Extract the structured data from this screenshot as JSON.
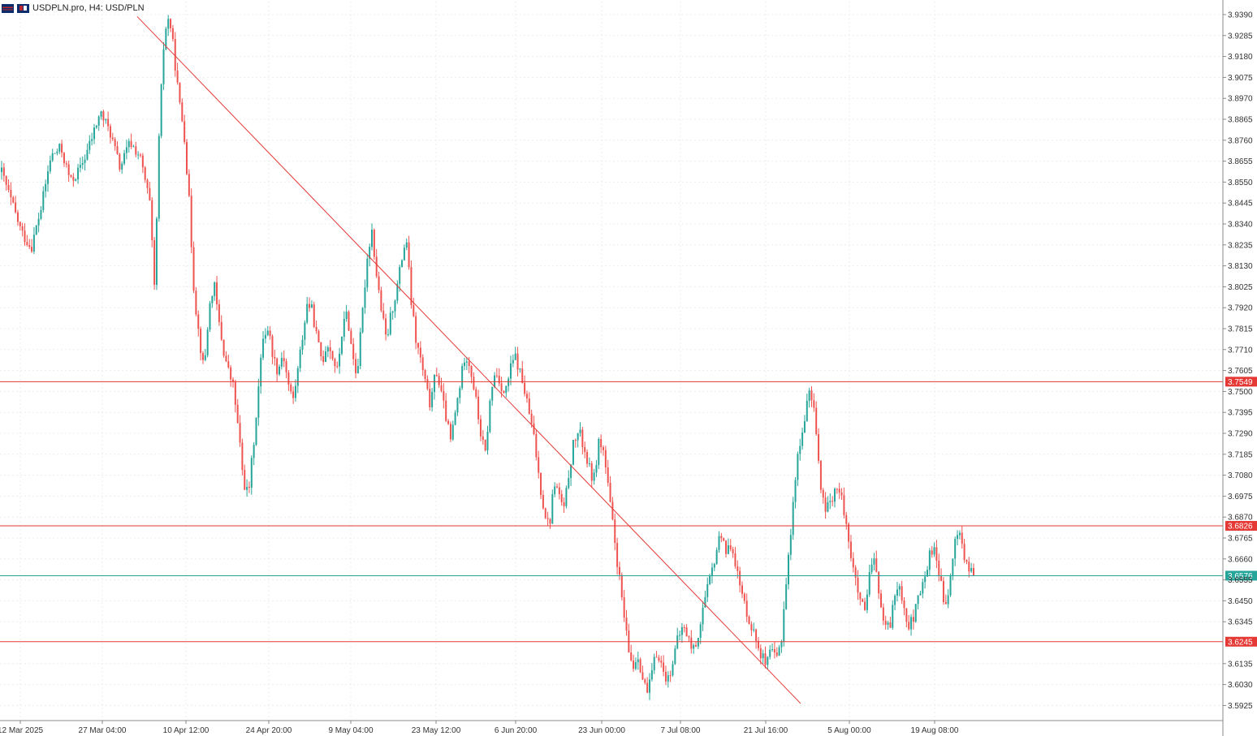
{
  "header": {
    "symbol_label": "USDPLN.pro, H4:  USD/PLN",
    "icons": [
      "broker-flag-icon",
      "broker-logo-icon"
    ]
  },
  "colors": {
    "bull": "#26a69a",
    "bear": "#ef5350",
    "resistance": "#e53935",
    "current_price": "#26a69a",
    "grid": "#ececec",
    "axis_text": "#333333"
  },
  "chart_data": {
    "type": "candlestick",
    "symbol": "USDPLN.pro",
    "timeframe": "H4",
    "ylim": [
      3.5855,
      3.9425
    ],
    "y_ticks": [
      "3.9390",
      "3.9285",
      "3.9180",
      "3.9075",
      "3.8970",
      "3.8865",
      "3.8760",
      "3.8655",
      "3.8550",
      "3.8445",
      "3.8340",
      "3.8235",
      "3.8130",
      "3.8025",
      "3.7920",
      "3.7815",
      "3.7710",
      "3.7605",
      "3.7500",
      "3.7395",
      "3.7290",
      "3.7185",
      "3.7080",
      "3.6975",
      "3.6870",
      "3.6765",
      "3.6660",
      "3.6555",
      "3.6450",
      "3.6345",
      "3.6135",
      "3.6030",
      "3.5925"
    ],
    "x_ticks": [
      "12 Mar 2025",
      "27 Mar 04:00",
      "10 Apr 12:00",
      "24 Apr 20:00",
      "9 May 04:00",
      "23 May 12:00",
      "6 Jun 20:00",
      "23 Jun 00:00",
      "7 Jul 08:00",
      "21 Jul 16:00",
      "5 Aug 00:00",
      "19 Aug 08:00"
    ],
    "horizontal_levels": [
      {
        "price": "3.7549",
        "value": 3.7549,
        "kind": "resistance"
      },
      {
        "price": "3.6826",
        "value": 3.6826,
        "kind": "resistance"
      },
      {
        "price": "3.6576",
        "value": 3.6576,
        "kind": "current"
      },
      {
        "price": "3.6245",
        "value": 3.6245,
        "kind": "resistance"
      }
    ],
    "trendline": {
      "from": {
        "date": "2025-03-30",
        "price": 3.938
      },
      "to": {
        "date": "2025-07-30",
        "price": 3.5935
      }
    },
    "path_points": [
      [
        0,
        3.86
      ],
      [
        4,
        3.845
      ],
      [
        8,
        3.83
      ],
      [
        12,
        3.822
      ],
      [
        16,
        3.842
      ],
      [
        20,
        3.868
      ],
      [
        24,
        3.872
      ],
      [
        28,
        3.855
      ],
      [
        32,
        3.862
      ],
      [
        36,
        3.875
      ],
      [
        40,
        3.89
      ],
      [
        44,
        3.88
      ],
      [
        48,
        3.862
      ],
      [
        52,
        3.875
      ],
      [
        56,
        3.868
      ],
      [
        60,
        3.845
      ],
      [
        62,
        3.8
      ],
      [
        64,
        3.885
      ],
      [
        66,
        3.93
      ],
      [
        68,
        3.938
      ],
      [
        70,
        3.918
      ],
      [
        72,
        3.895
      ],
      [
        74,
        3.88
      ],
      [
        76,
        3.845
      ],
      [
        78,
        3.8
      ],
      [
        80,
        3.778
      ],
      [
        82,
        3.76
      ],
      [
        84,
        3.79
      ],
      [
        86,
        3.805
      ],
      [
        88,
        3.785
      ],
      [
        90,
        3.77
      ],
      [
        92,
        3.76
      ],
      [
        94,
        3.752
      ],
      [
        96,
        3.73
      ],
      [
        98,
        3.705
      ],
      [
        100,
        3.698
      ],
      [
        102,
        3.722
      ],
      [
        104,
        3.75
      ],
      [
        106,
        3.778
      ],
      [
        108,
        3.782
      ],
      [
        110,
        3.768
      ],
      [
        112,
        3.76
      ],
      [
        114,
        3.77
      ],
      [
        116,
        3.755
      ],
      [
        118,
        3.745
      ],
      [
        120,
        3.76
      ],
      [
        122,
        3.778
      ],
      [
        124,
        3.795
      ],
      [
        126,
        3.79
      ],
      [
        128,
        3.775
      ],
      [
        130,
        3.765
      ],
      [
        132,
        3.775
      ],
      [
        134,
        3.768
      ],
      [
        136,
        3.76
      ],
      [
        138,
        3.78
      ],
      [
        140,
        3.79
      ],
      [
        142,
        3.77
      ],
      [
        144,
        3.758
      ],
      [
        146,
        3.785
      ],
      [
        148,
        3.815
      ],
      [
        150,
        3.832
      ],
      [
        152,
        3.808
      ],
      [
        154,
        3.79
      ],
      [
        156,
        3.775
      ],
      [
        158,
        3.79
      ],
      [
        160,
        3.8
      ],
      [
        162,
        3.815
      ],
      [
        164,
        3.828
      ],
      [
        166,
        3.795
      ],
      [
        168,
        3.775
      ],
      [
        170,
        3.765
      ],
      [
        172,
        3.752
      ],
      [
        174,
        3.742
      ],
      [
        176,
        3.762
      ],
      [
        178,
        3.75
      ],
      [
        180,
        3.738
      ],
      [
        182,
        3.725
      ],
      [
        184,
        3.74
      ],
      [
        186,
        3.755
      ],
      [
        188,
        3.77
      ],
      [
        190,
        3.762
      ],
      [
        192,
        3.748
      ],
      [
        194,
        3.73
      ],
      [
        196,
        3.718
      ],
      [
        198,
        3.745
      ],
      [
        200,
        3.76
      ],
      [
        202,
        3.755
      ],
      [
        204,
        3.748
      ],
      [
        206,
        3.76
      ],
      [
        208,
        3.768
      ],
      [
        210,
        3.76
      ],
      [
        212,
        3.75
      ],
      [
        214,
        3.738
      ],
      [
        216,
        3.725
      ],
      [
        218,
        3.705
      ],
      [
        220,
        3.69
      ],
      [
        222,
        3.682
      ],
      [
        224,
        3.705
      ],
      [
        226,
        3.698
      ],
      [
        228,
        3.69
      ],
      [
        230,
        3.71
      ],
      [
        232,
        3.725
      ],
      [
        234,
        3.73
      ],
      [
        236,
        3.722
      ],
      [
        238,
        3.712
      ],
      [
        240,
        3.705
      ],
      [
        242,
        3.725
      ],
      [
        244,
        3.72
      ],
      [
        246,
        3.7
      ],
      [
        248,
        3.68
      ],
      [
        250,
        3.66
      ],
      [
        252,
        3.64
      ],
      [
        254,
        3.62
      ],
      [
        256,
        3.612
      ],
      [
        258,
        3.618
      ],
      [
        260,
        3.605
      ],
      [
        262,
        3.598
      ],
      [
        264,
        3.612
      ],
      [
        266,
        3.62
      ],
      [
        268,
        3.61
      ],
      [
        270,
        3.605
      ],
      [
        272,
        3.615
      ],
      [
        274,
        3.625
      ],
      [
        276,
        3.632
      ],
      [
        278,
        3.628
      ],
      [
        280,
        3.62
      ],
      [
        282,
        3.625
      ],
      [
        284,
        3.64
      ],
      [
        286,
        3.65
      ],
      [
        288,
        3.66
      ],
      [
        290,
        3.672
      ],
      [
        292,
        3.68
      ],
      [
        294,
        3.668
      ],
      [
        296,
        3.675
      ],
      [
        298,
        3.66
      ],
      [
        300,
        3.648
      ],
      [
        302,
        3.64
      ],
      [
        304,
        3.632
      ],
      [
        306,
        3.625
      ],
      [
        308,
        3.618
      ],
      [
        310,
        3.612
      ],
      [
        312,
        3.62
      ],
      [
        314,
        3.615
      ],
      [
        316,
        3.625
      ],
      [
        318,
        3.655
      ],
      [
        320,
        3.68
      ],
      [
        322,
        3.712
      ],
      [
        324,
        3.725
      ],
      [
        326,
        3.742
      ],
      [
        328,
        3.75
      ],
      [
        330,
        3.735
      ],
      [
        332,
        3.7
      ],
      [
        334,
        3.69
      ],
      [
        336,
        3.695
      ],
      [
        338,
        3.702
      ],
      [
        340,
        3.698
      ],
      [
        342,
        3.688
      ],
      [
        344,
        3.67
      ],
      [
        346,
        3.655
      ],
      [
        348,
        3.645
      ],
      [
        350,
        3.638
      ],
      [
        352,
        3.66
      ],
      [
        354,
        3.665
      ],
      [
        356,
        3.645
      ],
      [
        358,
        3.63
      ],
      [
        360,
        3.632
      ],
      [
        362,
        3.648
      ],
      [
        364,
        3.655
      ],
      [
        366,
        3.64
      ],
      [
        368,
        3.632
      ],
      [
        370,
        3.638
      ],
      [
        372,
        3.648
      ],
      [
        374,
        3.655
      ],
      [
        376,
        3.668
      ],
      [
        378,
        3.672
      ],
      [
        380,
        3.66
      ],
      [
        382,
        3.642
      ],
      [
        384,
        3.648
      ],
      [
        386,
        3.672
      ],
      [
        388,
        3.682
      ],
      [
        390,
        3.668
      ],
      [
        392,
        3.66
      ],
      [
        394,
        3.658
      ]
    ],
    "grid": true,
    "legend": "none"
  }
}
